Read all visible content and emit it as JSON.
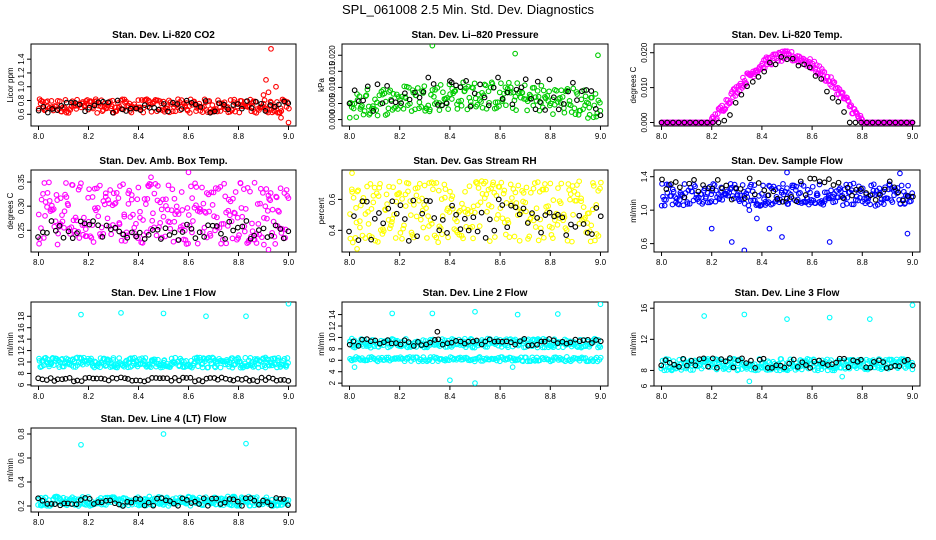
{
  "page": {
    "title": "SPL_061008  2.5 Min. Std. Dev. Diagnostics"
  },
  "colors": {
    "red": "#ff0000",
    "green": "#00cc00",
    "magenta": "#ff00ff",
    "yellow": "#ffff00",
    "blue": "#0000ff",
    "cyan": "#00ffff",
    "black": "#000000"
  },
  "chart_data": [
    {
      "type": "scatter",
      "title": "Stan. Dev. Li-820 CO2",
      "xlabel": "",
      "ylabel": "Licor ppm",
      "xlim": [
        7.97,
        9.03
      ],
      "ylim": [
        0.43,
        1.62
      ],
      "xticks": [
        "8.0",
        "8.2",
        "8.4",
        "8.6",
        "8.8",
        "9.0"
      ],
      "yticks": [
        {
          "v": 0.6,
          "label": "0.6"
        },
        {
          "v": 0.8,
          "label": "0.8"
        },
        {
          "v": 1.0,
          "label": "1.0"
        },
        {
          "v": 1.2,
          "label": "1.2"
        },
        {
          "v": 1.4,
          "label": "1.4"
        }
      ],
      "grid": false,
      "series": [
        {
          "color": "red",
          "band": {
            "x": [
              8.0,
              9.0
            ],
            "y": [
              0.62,
              0.82
            ],
            "n": 260
          },
          "points": [
            [
              8.93,
              1.55
            ],
            [
              8.91,
              1.1
            ],
            [
              8.95,
              1.0
            ],
            [
              8.92,
              0.92
            ],
            [
              8.97,
              0.55
            ],
            [
              9.0,
              0.48
            ],
            [
              8.9,
              0.88
            ]
          ]
        },
        {
          "color": "black",
          "band": {
            "x": [
              8.0,
              9.0
            ],
            "y": [
              0.62,
              0.8
            ],
            "n": 55
          },
          "points": []
        }
      ]
    },
    {
      "type": "scatter",
      "title": "Stan. Dev. Li–820 Pressure",
      "xlabel": "",
      "ylabel": "kPa",
      "xlim": [
        7.97,
        9.03
      ],
      "ylim": [
        -0.002,
        0.0235
      ],
      "xticks": [
        "8.0",
        "8.2",
        "8.4",
        "8.6",
        "8.8",
        "9.0"
      ],
      "yticks": [
        {
          "v": 0.0,
          "label": "0.000"
        },
        {
          "v": 0.005,
          "label": "0.005"
        },
        {
          "v": 0.01,
          "label": "0.010"
        },
        {
          "v": 0.015,
          "label": "0.015"
        },
        {
          "v": 0.02,
          "label": "0.020"
        }
      ],
      "grid": false,
      "series": [
        {
          "color": "green",
          "band": {
            "x": [
              8.0,
              9.0
            ],
            "y": [
              0.0,
              0.009
            ],
            "n": 240,
            "hump": 0.003
          },
          "points": [
            [
              8.33,
              0.023
            ],
            [
              8.66,
              0.0205
            ],
            [
              8.99,
              0.02
            ],
            [
              8.95,
              0.0005
            ]
          ]
        },
        {
          "color": "black",
          "band": {
            "x": [
              8.0,
              9.0
            ],
            "y": [
              0.001,
              0.011
            ],
            "n": 55,
            "hump": 0.003
          },
          "points": [
            [
              8.4,
              0.012
            ],
            [
              8.75,
              0.0118
            ]
          ]
        }
      ]
    },
    {
      "type": "scatter",
      "title": "Stan. Dev. Li-820 Temp.",
      "xlabel": "",
      "ylabel": "degrees C",
      "xlim": [
        7.97,
        9.03
      ],
      "ylim": [
        -0.001,
        0.0225
      ],
      "xticks": [
        "8.0",
        "8.2",
        "8.4",
        "8.6",
        "8.8",
        "9.0"
      ],
      "yticks": [
        {
          "v": 0.0,
          "label": "0.000"
        },
        {
          "v": 0.01,
          "label": "0.010"
        },
        {
          "v": 0.02,
          "label": "0.020"
        }
      ],
      "grid": false,
      "series": [
        {
          "color": "magenta",
          "arch": {
            "x": [
              8.0,
              9.0
            ],
            "from": 8.2,
            "to": 8.8,
            "peak": 0.019,
            "spread": 0.003,
            "n": 300
          },
          "points": []
        },
        {
          "color": "black",
          "arch": {
            "x": [
              8.0,
              9.0
            ],
            "from": 8.25,
            "to": 8.75,
            "peak": 0.018,
            "spread": 0.002,
            "n": 45
          },
          "points": []
        }
      ]
    },
    {
      "type": "scatter",
      "title": "Stan. Dev. Amb. Box Temp.",
      "xlabel": "",
      "ylabel": "degrees C",
      "xlim": [
        7.97,
        9.03
      ],
      "ylim": [
        0.205,
        0.375
      ],
      "xticks": [
        "8.0",
        "8.2",
        "8.4",
        "8.6",
        "8.8",
        "9.0"
      ],
      "yticks": [
        {
          "v": 0.25,
          "label": "0.25"
        },
        {
          "v": 0.3,
          "label": "0.30"
        },
        {
          "v": 0.35,
          "label": "0.35"
        }
      ],
      "grid": false,
      "series": [
        {
          "color": "magenta",
          "band": {
            "x": [
              8.0,
              9.0
            ],
            "y": [
              0.22,
              0.35
            ],
            "n": 300
          },
          "points": [
            [
              8.6,
              0.37
            ],
            [
              8.45,
              0.36
            ],
            [
              8.92,
              0.21
            ]
          ]
        },
        {
          "color": "black",
          "band": {
            "x": [
              8.0,
              9.0
            ],
            "y": [
              0.23,
              0.27
            ],
            "n": 60
          },
          "points": []
        }
      ]
    },
    {
      "type": "scatter",
      "title": "Stan. Dev. Gas Stream RH",
      "xlabel": "",
      "ylabel": "percent",
      "xlim": [
        7.97,
        9.03
      ],
      "ylim": [
        0.26,
        0.79
      ],
      "xticks": [
        "8.0",
        "8.2",
        "8.4",
        "8.6",
        "8.8",
        "9.0"
      ],
      "yticks": [
        {
          "v": 0.4,
          "label": "0.4"
        },
        {
          "v": 0.6,
          "label": "0.6"
        }
      ],
      "grid": false,
      "series": [
        {
          "color": "yellow",
          "band": {
            "x": [
              8.0,
              9.0
            ],
            "y": [
              0.32,
              0.72
            ],
            "n": 280
          },
          "points": [
            [
              8.01,
              0.77
            ],
            [
              8.03,
              0.28
            ]
          ]
        },
        {
          "color": "black",
          "band": {
            "x": [
              8.0,
              9.0
            ],
            "y": [
              0.33,
              0.6
            ],
            "n": 60
          },
          "points": []
        }
      ]
    },
    {
      "type": "scatter",
      "title": "Stan. Dev. Sample Flow",
      "xlabel": "",
      "ylabel": "ml/min",
      "xlim": [
        7.97,
        9.03
      ],
      "ylim": [
        0.5,
        1.48
      ],
      "xticks": [
        "8.0",
        "8.2",
        "8.4",
        "8.6",
        "8.8",
        "9.0"
      ],
      "yticks": [
        {
          "v": 0.6,
          "label": "0.6"
        },
        {
          "v": 1.0,
          "label": "1.0"
        },
        {
          "v": 1.4,
          "label": "1.4"
        }
      ],
      "grid": false,
      "series": [
        {
          "color": "blue",
          "band": {
            "x": [
              8.0,
              9.0
            ],
            "y": [
              1.05,
              1.32
            ],
            "n": 280
          },
          "points": [
            [
              8.33,
              0.52
            ],
            [
              8.28,
              0.62
            ],
            [
              8.43,
              0.78
            ],
            [
              8.48,
              0.68
            ],
            [
              8.67,
              0.62
            ],
            [
              8.98,
              0.72
            ],
            [
              8.2,
              0.78
            ],
            [
              8.38,
              0.9
            ],
            [
              8.35,
              1.0
            ],
            [
              8.5,
              1.45
            ],
            [
              8.95,
              1.44
            ]
          ]
        },
        {
          "color": "black",
          "band": {
            "x": [
              8.0,
              9.0
            ],
            "y": [
              1.1,
              1.38
            ],
            "n": 55
          },
          "points": []
        }
      ]
    },
    {
      "type": "scatter",
      "title": "Stan. Dev. Line 1 Flow",
      "xlabel": "",
      "ylabel": "ml/min",
      "xlim": [
        7.97,
        9.03
      ],
      "ylim": [
        5.8,
        20.5
      ],
      "xticks": [
        "8.0",
        "8.2",
        "8.4",
        "8.6",
        "8.8",
        "9.0"
      ],
      "yticks": [
        {
          "v": 6,
          "label": "6"
        },
        {
          "v": 8,
          "label": "8"
        },
        {
          "v": 10,
          "label": "10"
        },
        {
          "v": 12,
          "label": "12"
        },
        {
          "v": 14,
          "label": "14"
        },
        {
          "v": 16,
          "label": "16"
        },
        {
          "v": 18,
          "label": "18"
        }
      ],
      "grid": false,
      "series": [
        {
          "color": "cyan",
          "band": {
            "x": [
              8.0,
              9.0
            ],
            "y": [
              9.0,
              10.8
            ],
            "n": 320
          },
          "points": [
            [
              8.17,
              18.3
            ],
            [
              8.33,
              18.6
            ],
            [
              8.5,
              18.5
            ],
            [
              8.67,
              18.0
            ],
            [
              8.83,
              18.0
            ],
            [
              9.0,
              20.2
            ]
          ]
        },
        {
          "color": "black",
          "band": {
            "x": [
              8.0,
              9.0
            ],
            "y": [
              6.6,
              7.3
            ],
            "n": 65
          },
          "points": []
        }
      ]
    },
    {
      "type": "scatter",
      "title": "Stan. Dev. Line 2 Flow",
      "xlabel": "",
      "ylabel": "ml/min",
      "xlim": [
        7.97,
        9.03
      ],
      "ylim": [
        1.5,
        16.2
      ],
      "xticks": [
        "8.0",
        "8.2",
        "8.4",
        "8.6",
        "8.8",
        "9.0"
      ],
      "yticks": [
        {
          "v": 2,
          "label": "2"
        },
        {
          "v": 4,
          "label": "4"
        },
        {
          "v": 6,
          "label": "6"
        },
        {
          "v": 8,
          "label": "8"
        },
        {
          "v": 10,
          "label": "10"
        },
        {
          "v": 12,
          "label": "12"
        },
        {
          "v": 14,
          "label": "14"
        }
      ],
      "grid": false,
      "series": [
        {
          "color": "cyan",
          "band": {
            "x": [
              8.0,
              9.0
            ],
            "y": [
              8.2,
              9.8
            ],
            "n": 260
          },
          "points": [
            [
              8.17,
              14.2
            ],
            [
              8.33,
              14.2
            ],
            [
              8.5,
              14.5
            ],
            [
              8.67,
              14.0
            ],
            [
              8.83,
              14.1
            ],
            [
              9.0,
              15.8
            ],
            [
              8.02,
              4.8
            ],
            [
              8.4,
              2.5
            ],
            [
              8.5,
              2.0
            ],
            [
              8.65,
              4.8
            ]
          ]
        },
        {
          "color": "cyan",
          "band": {
            "x": [
              8.0,
              9.0
            ],
            "y": [
              5.8,
              6.6
            ],
            "n": 180
          },
          "points": []
        },
        {
          "color": "black",
          "band": {
            "x": [
              8.0,
              9.0
            ],
            "y": [
              8.5,
              9.8
            ],
            "n": 60
          },
          "points": [
            [
              8.35,
              11.0
            ]
          ]
        }
      ]
    },
    {
      "type": "scatter",
      "title": "Stan. Dev. Line 3 Flow",
      "xlabel": "",
      "ylabel": "ml/min",
      "xlim": [
        7.97,
        9.03
      ],
      "ylim": [
        6.0,
        16.8
      ],
      "xticks": [
        "8.0",
        "8.2",
        "8.4",
        "8.6",
        "8.8",
        "9.0"
      ],
      "yticks": [
        {
          "v": 6,
          "label": "6"
        },
        {
          "v": 8,
          "label": "8"
        },
        {
          "v": 12,
          "label": "12"
        },
        {
          "v": 16,
          "label": "16"
        }
      ],
      "grid": false,
      "series": [
        {
          "color": "cyan",
          "band": {
            "x": [
              8.0,
              9.0
            ],
            "y": [
              8.0,
              9.5
            ],
            "n": 300
          },
          "points": [
            [
              8.17,
              15.0
            ],
            [
              8.33,
              15.2
            ],
            [
              8.5,
              14.6
            ],
            [
              8.67,
              14.8
            ],
            [
              8.83,
              14.6
            ],
            [
              9.0,
              16.4
            ],
            [
              8.35,
              6.6
            ],
            [
              8.72,
              7.2
            ]
          ]
        },
        {
          "color": "black",
          "band": {
            "x": [
              8.0,
              9.0
            ],
            "y": [
              8.3,
              9.6
            ],
            "n": 60
          },
          "points": []
        }
      ]
    },
    {
      "type": "scatter",
      "title": "Stan. Dev. Line 4 (LT) Flow",
      "xlabel": "",
      "ylabel": "ml/min",
      "xlim": [
        7.97,
        9.03
      ],
      "ylim": [
        0.15,
        0.85
      ],
      "xticks": [
        "8.0",
        "8.2",
        "8.4",
        "8.6",
        "8.8",
        "9.0"
      ],
      "yticks": [
        {
          "v": 0.2,
          "label": "0.2"
        },
        {
          "v": 0.4,
          "label": "0.4"
        },
        {
          "v": 0.6,
          "label": "0.6"
        },
        {
          "v": 0.8,
          "label": "0.8"
        }
      ],
      "grid": false,
      "series": [
        {
          "color": "cyan",
          "band": {
            "x": [
              8.0,
              9.0
            ],
            "y": [
              0.2,
              0.28
            ],
            "n": 300
          },
          "points": [
            [
              8.17,
              0.71
            ],
            [
              8.5,
              0.8
            ],
            [
              8.83,
              0.72
            ]
          ]
        },
        {
          "color": "black",
          "band": {
            "x": [
              8.0,
              9.0
            ],
            "y": [
              0.2,
              0.27
            ],
            "n": 60
          },
          "points": []
        }
      ]
    }
  ]
}
